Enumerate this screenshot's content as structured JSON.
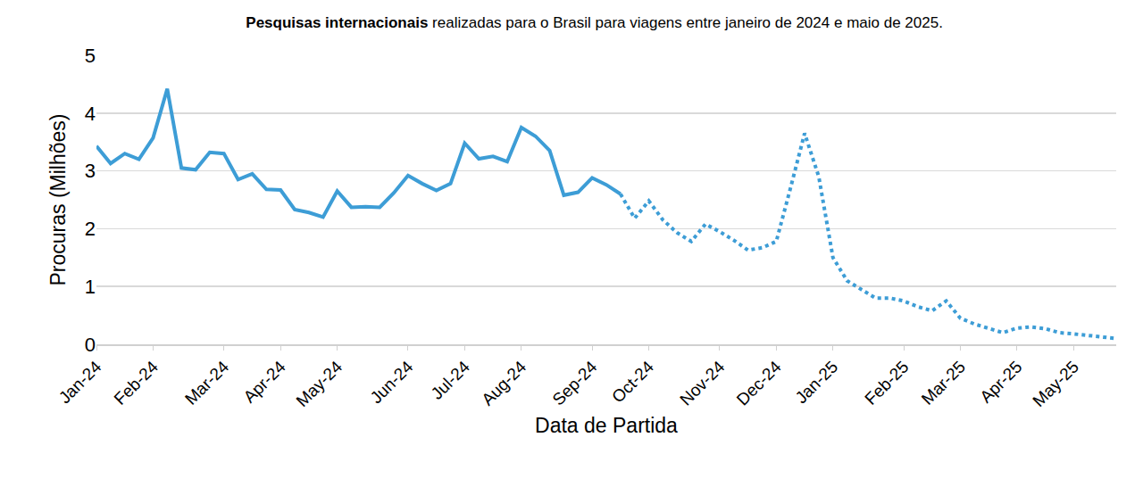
{
  "chart_data": {
    "type": "line",
    "title": "Pesquisas internacionais realizadas para o Brasil para viagens entre janeiro de 2024 e maio de 2025.",
    "title_bold": "Pesquisas internacionais",
    "x_label": "Data de Partida",
    "y_label": "Procuras (Milhões)",
    "categories": [
      "Jan-24",
      null,
      null,
      null,
      "Feb-24",
      null,
      null,
      null,
      null,
      "Mar-24",
      null,
      null,
      null,
      "Apr-24",
      null,
      null,
      null,
      "May-24",
      null,
      null,
      null,
      null,
      "Jun-24",
      null,
      null,
      null,
      "Jul-24",
      null,
      null,
      null,
      "Aug-24",
      null,
      null,
      null,
      null,
      "Sep-24",
      null,
      null,
      null,
      "Oct-24",
      null,
      null,
      null,
      null,
      "Nov-24",
      null,
      null,
      null,
      "Dec-24",
      null,
      null,
      null,
      "Jan-25",
      null,
      null,
      null,
      null,
      "Feb-25",
      null,
      null,
      null,
      "Mar-25",
      null,
      null,
      null,
      "Apr-25",
      null,
      null,
      null,
      "May-25",
      null,
      null,
      null
    ],
    "series": [
      {
        "color": "#3d9dd6",
        "line_style": "solid",
        "values": [
          3.43,
          3.13,
          3.3,
          3.2,
          3.57,
          4.42,
          3.05,
          3.02,
          3.32,
          3.3,
          2.85,
          2.95,
          2.68,
          2.67,
          2.33,
          2.28,
          2.2,
          2.65,
          2.37,
          2.38,
          2.37,
          2.62,
          2.92,
          2.78,
          2.66,
          2.78,
          3.48,
          3.21,
          3.25,
          3.16,
          3.75,
          3.6,
          3.35,
          2.58,
          2.63,
          2.88,
          2.76,
          2.6,
          null,
          null,
          null,
          null,
          null,
          null,
          null,
          null,
          null,
          null,
          null,
          null,
          null,
          null,
          null,
          null,
          null,
          null,
          null,
          null,
          null,
          null,
          null,
          null,
          null,
          null,
          null,
          null,
          null,
          null,
          null,
          null,
          null,
          null,
          null
        ]
      },
      {
        "color": "#3d9dd6",
        "line_style": "dotted",
        "values": [
          null,
          null,
          null,
          null,
          null,
          null,
          null,
          null,
          null,
          null,
          null,
          null,
          null,
          null,
          null,
          null,
          null,
          null,
          null,
          null,
          null,
          null,
          null,
          null,
          null,
          null,
          null,
          null,
          null,
          null,
          null,
          null,
          null,
          null,
          null,
          null,
          null,
          2.6,
          2.18,
          2.48,
          2.15,
          1.93,
          1.78,
          2.08,
          1.95,
          1.8,
          1.63,
          1.67,
          1.78,
          2.7,
          3.65,
          2.9,
          1.5,
          1.1,
          0.95,
          0.8,
          0.8,
          0.75,
          0.65,
          0.58,
          0.75,
          0.45,
          0.35,
          0.27,
          0.2,
          0.28,
          0.3,
          0.27,
          0.2,
          0.18,
          0.15,
          0.13,
          0.1
        ]
      }
    ],
    "ylim": [
      0,
      5
    ],
    "yticks": [
      0,
      1,
      2,
      3,
      4,
      5
    ],
    "grid": true
  }
}
